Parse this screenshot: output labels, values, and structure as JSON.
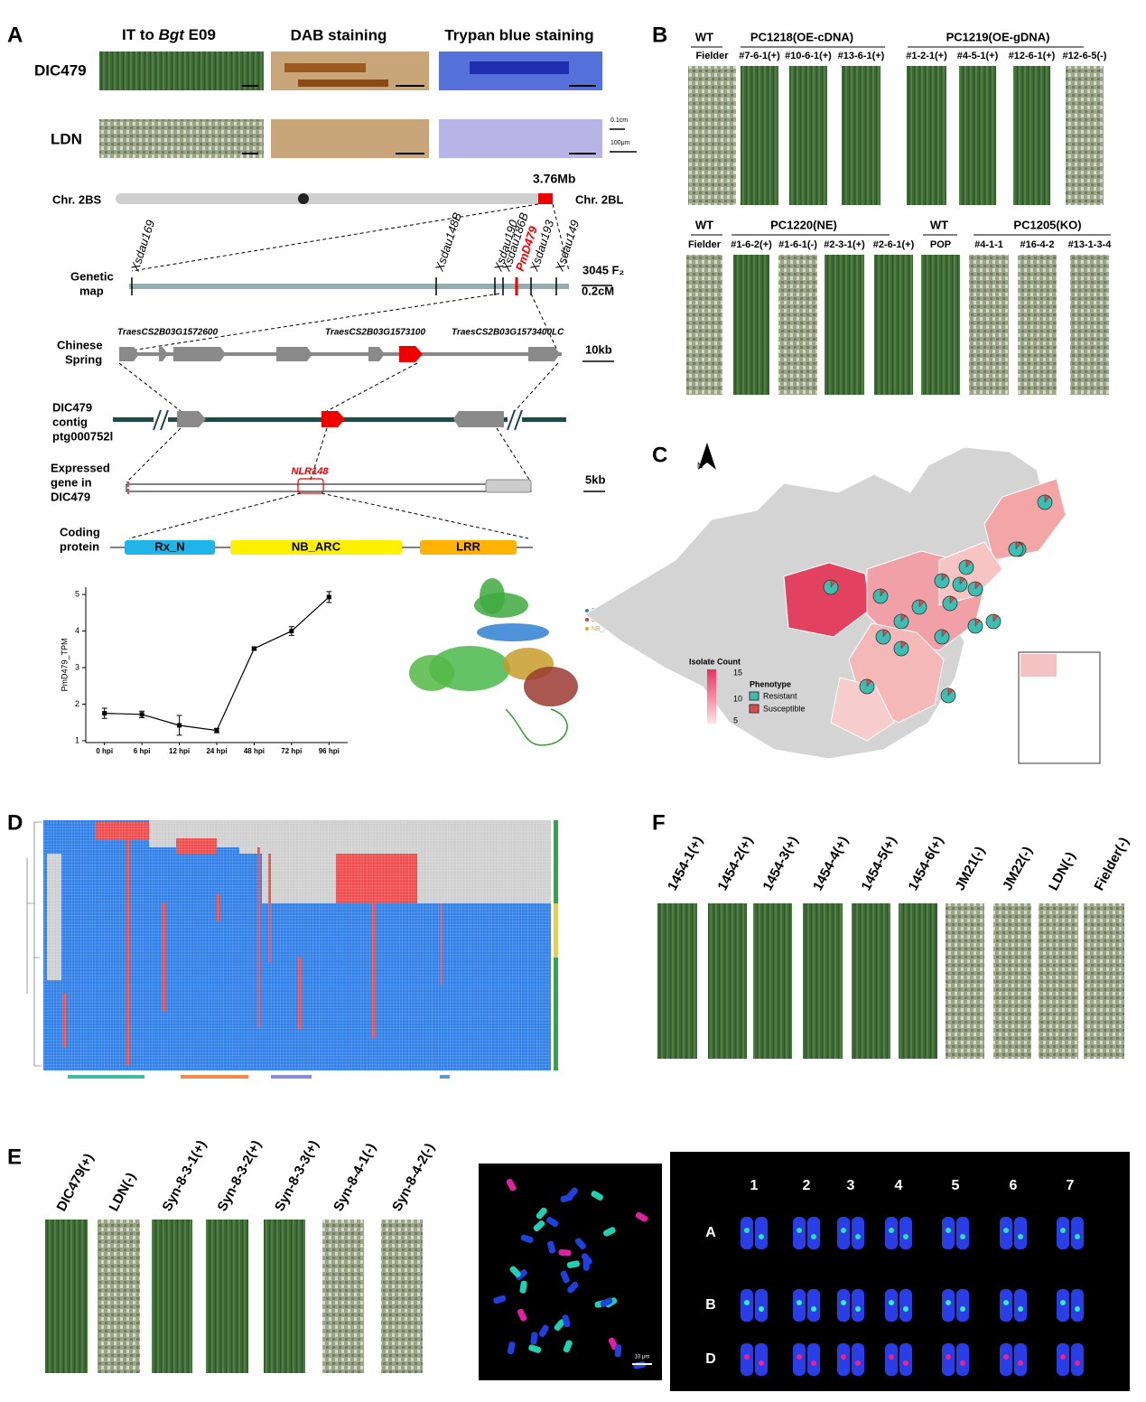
{
  "panel_labels": [
    "A",
    "B",
    "C",
    "D",
    "E",
    "F"
  ],
  "panel_a": {
    "header_1": [
      "IT to ",
      "Bgt",
      " E09"
    ],
    "header_2": "DAB staining",
    "header_3": "Trypan blue staining",
    "rows": [
      "DIC479",
      "LDN"
    ],
    "scale_bars": [
      "0.1cm",
      "100μm"
    ],
    "chromosome": {
      "position": "3.76Mb",
      "left_arm": "Chr. 2BS",
      "right_arm": "Chr. 2BL"
    },
    "genetic_map": {
      "label": [
        "Genetic",
        "map"
      ],
      "markers": [
        "Xsdau169",
        "Xsdau148B",
        "Xsdau190",
        "Xsdau186B",
        "PmD479",
        "Xsdau193",
        "Xsdau149"
      ],
      "population": "3045 F₂",
      "scale": "0.2cM"
    },
    "chinese_spring": {
      "label": [
        "Chinese",
        "Spring"
      ],
      "genes": [
        "TraesCS2B03G1572600",
        "TraesCS2B03G1573100",
        "TraesCS2B03G1573400LC"
      ],
      "scale": "10kb"
    },
    "contig": {
      "label": [
        "DIC479",
        "contig",
        "ptg000752l"
      ]
    },
    "expressed": {
      "label": [
        "Expressed",
        "gene in",
        "DIC479"
      ],
      "gene": "NLR148",
      "scale": "5kb"
    },
    "protein": {
      "label": [
        "Coding",
        "protein"
      ],
      "domains": [
        "Rx_N",
        "NB_ARC",
        "LRR"
      ]
    },
    "structure_legend": [
      "Rx_N",
      "LRR",
      "NB_ARC"
    ]
  },
  "chart_data": {
    "type": "line",
    "y_label": "PmD479_TPM",
    "categories": [
      "0 hpi",
      "6 hpi",
      "12 hpi",
      "24 hpi",
      "48 hpi",
      "72 hpi",
      "96 hpi"
    ],
    "values": [
      1.75,
      1.72,
      1.42,
      1.28,
      3.52,
      4.0,
      4.93
    ],
    "errors": [
      0.14,
      0.09,
      0.27,
      0.06,
      0.03,
      0.12,
      0.15
    ],
    "color": "#000000",
    "ylim": [
      0.95,
      5.2
    ],
    "yticks": [
      1,
      2,
      3,
      4,
      5
    ]
  },
  "panel_b": {
    "row_1": {
      "groups": [
        "WT",
        "PC1218(OE-cDNA)",
        "PC1219(OE-gDNA)"
      ],
      "lines": [
        "Fielder",
        "#7-6-1(+)",
        "#10-6-1(+)",
        "#13-6-1(+)",
        "#1-2-1(+)",
        "#4-5-1(+)",
        "#12-6-1(+)",
        "#12-6-5(-)"
      ]
    },
    "row_2": {
      "groups": [
        "WT",
        "PC1220(NE)",
        "WT",
        "PC1205(KO)"
      ],
      "lines": [
        "Fielder",
        "#1-6-2(+)",
        "#1-6-1(-)",
        "#2-3-1(+)",
        "#2-6-1(+)",
        "POP",
        "#4-1-1",
        "#16-4-2",
        "#13-1-3-4"
      ]
    }
  },
  "panel_c": {
    "compass": "N",
    "legend_title": "Isolate Count",
    "legend_ticks": [
      "15",
      "10",
      "5"
    ],
    "phenotype_title": "Phenotype",
    "phenotypes": [
      "Resistant",
      "Susceptible"
    ]
  },
  "panel_e": {
    "lines": [
      "DIC479(+)",
      "LDN(-)",
      "Syn-8-3-1(+)",
      "Syn-8-3-2(+)",
      "Syn-8-3-3(+)",
      "Syn-8-4-1(-)",
      "Syn-8-4-2(-)"
    ],
    "fish_scale": "10 μm",
    "chromosomes": [
      "1",
      "2",
      "3",
      "4",
      "5",
      "6",
      "7"
    ],
    "genomes": [
      "A",
      "B",
      "D"
    ]
  },
  "panel_f": {
    "lines": [
      "1454-1(+)",
      "1454-2(+)",
      "1454-3(+)",
      "1454-4(+)",
      "1454-5(+)",
      "1454-6(+)",
      "JM21(-)",
      "JM22(-)",
      "LDN(-)",
      "Fielder(-)"
    ]
  }
}
